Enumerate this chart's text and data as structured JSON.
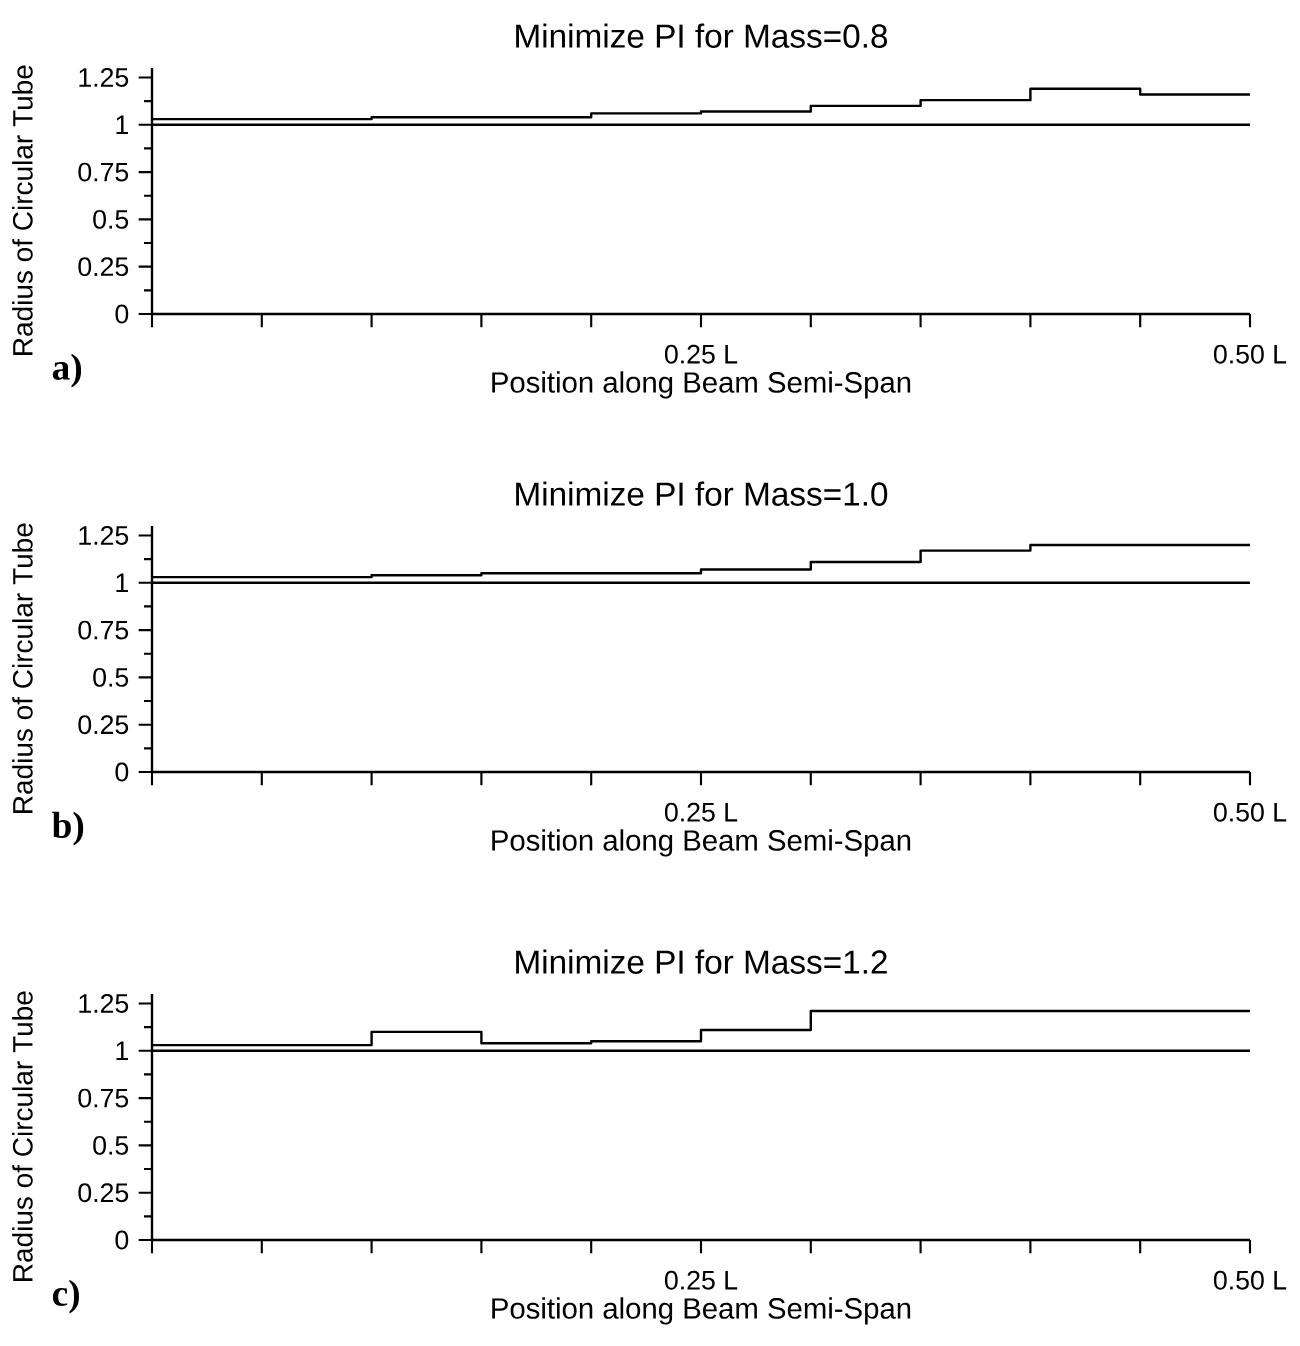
{
  "chart_data": [
    {
      "type": "step",
      "title": "Minimize PI for Mass=0.8",
      "xlabel": "Position along Beam Semi-Span",
      "ylabel": "Radius of Circular Tube",
      "annotations": [
        "a)"
      ],
      "x": [
        0,
        0.05,
        0.1,
        0.15,
        0.2,
        0.25,
        0.3,
        0.35,
        0.4,
        0.45,
        0.5
      ],
      "series": [
        {
          "color": "#000000",
          "values": [
            1.03,
            1.03,
            1.04,
            1.04,
            1.06,
            1.07,
            1.1,
            1.13,
            1.19,
            1.16,
            1.16
          ]
        }
      ],
      "xlim": [
        0,
        0.5
      ],
      "ylim": [
        0,
        1.3
      ],
      "xticks": [
        {
          "value": 0,
          "label": null
        },
        {
          "value": 0.05,
          "label": null
        },
        {
          "value": 0.1,
          "label": null
        },
        {
          "value": 0.15,
          "label": null
        },
        {
          "value": 0.2,
          "label": null
        },
        {
          "value": 0.25,
          "label": "0.25 L"
        },
        {
          "value": 0.3,
          "label": null
        },
        {
          "value": 0.35,
          "label": null
        },
        {
          "value": 0.4,
          "label": null
        },
        {
          "value": 0.45,
          "label": null
        },
        {
          "value": 0.5,
          "label": "0.50 L"
        }
      ],
      "yticks": [
        0,
        0.25,
        0.5,
        0.75,
        1,
        1.25
      ],
      "ref_lines": [
        {
          "axis": "y",
          "value": 1,
          "color": "#000000"
        }
      ]
    },
    {
      "type": "step",
      "title": "Minimize PI for Mass=1.0",
      "xlabel": "Position along Beam Semi-Span",
      "ylabel": "Radius of Circular Tube",
      "annotations": [
        "b)"
      ],
      "x": [
        0,
        0.05,
        0.1,
        0.15,
        0.2,
        0.25,
        0.3,
        0.35,
        0.4,
        0.45,
        0.5
      ],
      "series": [
        {
          "color": "#000000",
          "values": [
            1.03,
            1.03,
            1.04,
            1.05,
            1.05,
            1.07,
            1.11,
            1.17,
            1.2,
            1.2,
            1.2
          ]
        }
      ],
      "xlim": [
        0,
        0.5
      ],
      "ylim": [
        0,
        1.3
      ],
      "xticks": [
        {
          "value": 0,
          "label": null
        },
        {
          "value": 0.05,
          "label": null
        },
        {
          "value": 0.1,
          "label": null
        },
        {
          "value": 0.15,
          "label": null
        },
        {
          "value": 0.2,
          "label": null
        },
        {
          "value": 0.25,
          "label": "0.25 L"
        },
        {
          "value": 0.3,
          "label": null
        },
        {
          "value": 0.35,
          "label": null
        },
        {
          "value": 0.4,
          "label": null
        },
        {
          "value": 0.45,
          "label": null
        },
        {
          "value": 0.5,
          "label": "0.50 L"
        }
      ],
      "yticks": [
        0,
        0.25,
        0.5,
        0.75,
        1,
        1.25
      ],
      "ref_lines": [
        {
          "axis": "y",
          "value": 1,
          "color": "#000000"
        }
      ]
    },
    {
      "type": "step",
      "title": "Minimize PI for Mass=1.2",
      "xlabel": "Position along Beam Semi-Span",
      "ylabel": "Radius of Circular Tube",
      "annotations": [
        "c)"
      ],
      "x": [
        0,
        0.05,
        0.1,
        0.15,
        0.2,
        0.25,
        0.3,
        0.35,
        0.4,
        0.45,
        0.5
      ],
      "series": [
        {
          "color": "#000000",
          "values": [
            1.03,
            1.03,
            1.1,
            1.04,
            1.05,
            1.11,
            1.21,
            1.21,
            1.21,
            1.21,
            1.21
          ]
        }
      ],
      "xlim": [
        0,
        0.5
      ],
      "ylim": [
        0,
        1.3
      ],
      "xticks": [
        {
          "value": 0,
          "label": null
        },
        {
          "value": 0.05,
          "label": null
        },
        {
          "value": 0.1,
          "label": null
        },
        {
          "value": 0.15,
          "label": null
        },
        {
          "value": 0.2,
          "label": null
        },
        {
          "value": 0.25,
          "label": "0.25 L"
        },
        {
          "value": 0.3,
          "label": null
        },
        {
          "value": 0.35,
          "label": null
        },
        {
          "value": 0.4,
          "label": null
        },
        {
          "value": 0.45,
          "label": null
        },
        {
          "value": 0.5,
          "label": "0.50 L"
        }
      ],
      "yticks": [
        0,
        0.25,
        0.5,
        0.75,
        1,
        1.25
      ],
      "ref_lines": [
        {
          "axis": "y",
          "value": 1,
          "color": "#000000"
        }
      ]
    }
  ]
}
